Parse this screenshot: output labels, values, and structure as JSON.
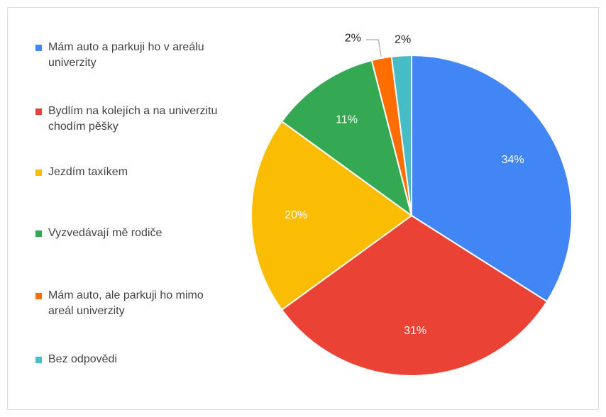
{
  "chart_data": {
    "type": "pie",
    "categories": [
      "Mám auto a parkuji ho v areálu univerzity",
      "Bydlím na kolejích a na univerzitu chodím pěšky",
      "Jezdím taxíkem",
      "Vyzvedávají mě rodiče",
      "Mám auto, ale parkuji ho mimo areál univerzity",
      "Bez odpovědi"
    ],
    "values": [
      34,
      31,
      20,
      11,
      2,
      2
    ],
    "value_labels": [
      "34%",
      "31%",
      "20%",
      "11%",
      "2%",
      "2%"
    ],
    "colors": [
      "#4285f4",
      "#ea4335",
      "#fbbc04",
      "#34a853",
      "#ff6d01",
      "#46bdc6"
    ],
    "legend": "left"
  }
}
